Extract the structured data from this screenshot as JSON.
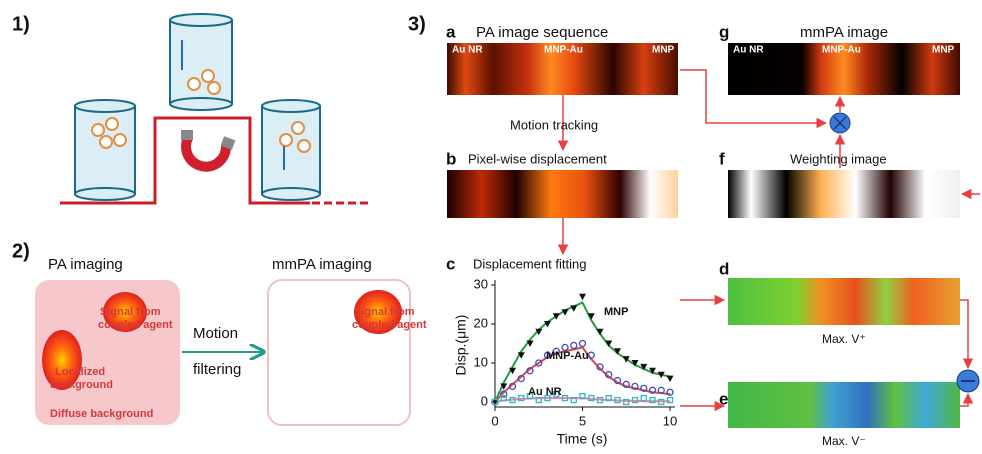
{
  "panel1": {
    "label": "1)"
  },
  "panel2": {
    "label": "2)",
    "left_title": "PA imaging",
    "right_title": "mmPA imaging",
    "signal_left": [
      "Signal from",
      "coupled agent"
    ],
    "localized": [
      "Localized",
      "background"
    ],
    "diffuse": "Diffuse background",
    "arrow_label": [
      "Motion",
      "filtering"
    ],
    "signal_right": [
      "Signal from",
      "coupled agent"
    ]
  },
  "panel3": {
    "label": "3)",
    "a": {
      "letter": "a",
      "title": "PA image sequence",
      "tags": [
        "Au NR",
        "MNP-Au",
        "MNP"
      ]
    },
    "motion_tracking": "Motion tracking",
    "b": {
      "letter": "b",
      "title": "Pixel-wise displacement"
    },
    "c": {
      "letter": "c"
    },
    "g": {
      "letter": "g",
      "title": "mmPA image",
      "tags": [
        "Au NR",
        "MNP-Au",
        "MNP"
      ]
    },
    "f": {
      "letter": "f",
      "title": "Weighting image"
    },
    "d": {
      "letter": "d",
      "caption": "Max. V⁺"
    },
    "e": {
      "letter": "e",
      "caption": "Max. V⁻"
    }
  },
  "chart_data": {
    "type": "scatter",
    "title": "Displacement fitting",
    "x_label": "Time (s)",
    "y_label": "Disp.(μm)",
    "x": [
      0,
      0.5,
      1,
      1.5,
      2,
      2.5,
      3,
      3.5,
      4,
      4.5,
      5,
      5.5,
      6,
      6.5,
      7,
      7.5,
      8,
      8.5,
      9,
      9.5,
      10
    ],
    "xlim": [
      0,
      10
    ],
    "xticks": [
      0,
      5,
      10
    ],
    "ylim": [
      0,
      30
    ],
    "yticks": [
      0,
      10,
      20,
      30
    ],
    "series": [
      {
        "name": "MNP",
        "color": "#111111",
        "marker": "triangle",
        "values": [
          0,
          4,
          8,
          12,
          15,
          18,
          20,
          22,
          23,
          24,
          27,
          22,
          18,
          15,
          13,
          11,
          10,
          9,
          8,
          7,
          6
        ]
      },
      {
        "name": "MNP-Au",
        "color": "#4050b0",
        "marker": "circle",
        "values": [
          0,
          2,
          4,
          6,
          8,
          10,
          12,
          13,
          14,
          14.5,
          15,
          12,
          9,
          7,
          5.5,
          4.5,
          4,
          3.5,
          3,
          3,
          2.5
        ]
      },
      {
        "name": "Au NR",
        "color": "#30b8c8",
        "marker": "square",
        "values": [
          0,
          1,
          0.5,
          1,
          1.5,
          0.5,
          1,
          2,
          1,
          0.5,
          1.5,
          1,
          0.5,
          1,
          0.5,
          0,
          0.5,
          1,
          0.5,
          0,
          0.5
        ]
      },
      {
        "color": "#20a040",
        "marker": "line",
        "values": [
          0,
          5,
          9,
          13,
          16,
          18.5,
          20.5,
          22,
          23.5,
          24.5,
          25.5,
          21,
          17.5,
          14.5,
          12.5,
          11,
          9.5,
          8.5,
          7.5,
          7,
          6.5
        ]
      },
      {
        "color": "#e04050",
        "marker": "line",
        "values": [
          0,
          2.5,
          4.5,
          6.5,
          8.5,
          10,
          11.5,
          12.5,
          13,
          13.5,
          14,
          11,
          8.5,
          6.5,
          5,
          4,
          3.5,
          3,
          2.5,
          2.3,
          2
        ]
      },
      {
        "color": "#f080a0",
        "marker": "line",
        "values": [
          0,
          0.4,
          0.6,
          0.8,
          0.9,
          1,
          1,
          1,
          1,
          1,
          1,
          0.8,
          0.6,
          0.5,
          0.4,
          0.3,
          0.3,
          0.2,
          0.2,
          0.2,
          0.2
        ]
      }
    ]
  }
}
